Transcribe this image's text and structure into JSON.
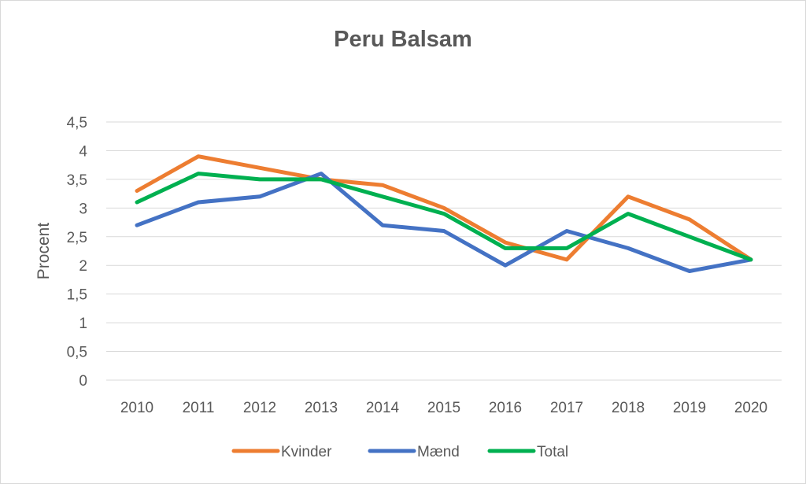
{
  "chart_data": {
    "type": "line",
    "title": "Peru Balsam",
    "xlabel": "",
    "ylabel": "Procent",
    "ylim": [
      0,
      4.5
    ],
    "y_ticks": [
      "0",
      "0,5",
      "1",
      "1,5",
      "2",
      "2,5",
      "3",
      "3,5",
      "4",
      "4,5"
    ],
    "y_tick_values": [
      0,
      0.5,
      1,
      1.5,
      2,
      2.5,
      3,
      3.5,
      4,
      4.5
    ],
    "categories": [
      "2010",
      "2011",
      "2012",
      "2013",
      "2014",
      "2015",
      "2016",
      "2017",
      "2018",
      "2019",
      "2020"
    ],
    "grid": true,
    "legend_position": "bottom",
    "series": [
      {
        "name": "Kvinder",
        "color": "#ED7D31",
        "values": [
          3.3,
          3.9,
          3.7,
          3.5,
          3.4,
          3.0,
          2.4,
          2.1,
          3.2,
          2.8,
          2.1
        ]
      },
      {
        "name": "Mænd",
        "color": "#4472C4",
        "values": [
          2.7,
          3.1,
          3.2,
          3.6,
          2.7,
          2.6,
          2.0,
          2.6,
          2.3,
          1.9,
          2.1
        ]
      },
      {
        "name": "Total",
        "color": "#00B050",
        "values": [
          3.1,
          3.6,
          3.5,
          3.5,
          3.2,
          2.9,
          2.3,
          2.3,
          2.9,
          2.5,
          2.1
        ]
      }
    ]
  }
}
